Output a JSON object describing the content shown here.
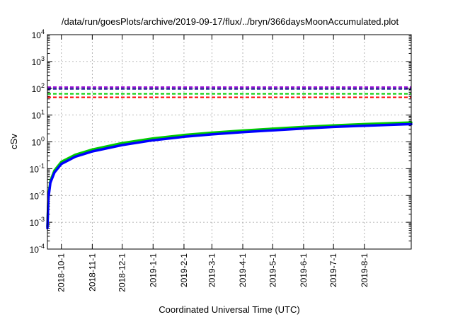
{
  "chart_data": {
    "type": "line",
    "title": "/data/run/goesPlots/archive/2019-09-17/flux/../bryn/366daysMoonAccumulated.plot",
    "xlabel": "Coordinated Universal Time (UTC)",
    "ylabel": "cSv",
    "y_scale": "log",
    "ylim_exp": [
      -4,
      4
    ],
    "ytick_exponents": [
      -4,
      -3,
      -2,
      -1,
      0,
      1,
      2,
      3,
      4
    ],
    "ytick_base": "10",
    "xlim": [
      "2018-09-17",
      "2019-09-17"
    ],
    "xticks": [
      {
        "date": "2018-10-01",
        "label": "2018-10-1"
      },
      {
        "date": "2018-11-01",
        "label": "2018-11-1"
      },
      {
        "date": "2018-12-01",
        "label": "2018-12-1"
      },
      {
        "date": "2019-01-01",
        "label": "2019-1-1"
      },
      {
        "date": "2019-02-01",
        "label": "2019-2-1"
      },
      {
        "date": "2019-03-01",
        "label": "2019-3-1"
      },
      {
        "date": "2019-04-01",
        "label": "2019-4-1"
      },
      {
        "date": "2019-05-01",
        "label": "2019-5-1"
      },
      {
        "date": "2019-06-01",
        "label": "2019-6-1"
      },
      {
        "date": "2019-07-01",
        "label": "2019-7-1"
      },
      {
        "date": "2019-08-01",
        "label": "2019-8-1"
      }
    ],
    "grid": true,
    "series": [
      {
        "color": "#00cc00",
        "values": [
          {
            "x": "2018-09-17",
            "y": 0.0007
          },
          {
            "x": "2018-09-18",
            "y": 0.009
          },
          {
            "x": "2018-09-20",
            "y": 0.035
          },
          {
            "x": "2018-09-24",
            "y": 0.085
          },
          {
            "x": "2018-10-01",
            "y": 0.18
          },
          {
            "x": "2018-10-15",
            "y": 0.33
          },
          {
            "x": "2018-11-01",
            "y": 0.52
          },
          {
            "x": "2018-12-01",
            "y": 0.9
          },
          {
            "x": "2019-01-01",
            "y": 1.35
          },
          {
            "x": "2019-02-01",
            "y": 1.8
          },
          {
            "x": "2019-03-01",
            "y": 2.2
          },
          {
            "x": "2019-04-01",
            "y": 2.65
          },
          {
            "x": "2019-05-01",
            "y": 3.1
          },
          {
            "x": "2019-06-01",
            "y": 3.6
          },
          {
            "x": "2019-07-01",
            "y": 4.1
          },
          {
            "x": "2019-08-01",
            "y": 4.6
          },
          {
            "x": "2019-09-17",
            "y": 5.3
          }
        ]
      },
      {
        "color": "#0000ff",
        "values": [
          {
            "x": "2018-09-17",
            "y": 0.0006
          },
          {
            "x": "2018-09-18",
            "y": 0.008
          },
          {
            "x": "2018-09-20",
            "y": 0.03
          },
          {
            "x": "2018-09-24",
            "y": 0.072
          },
          {
            "x": "2018-10-01",
            "y": 0.15
          },
          {
            "x": "2018-10-15",
            "y": 0.28
          },
          {
            "x": "2018-11-01",
            "y": 0.44
          },
          {
            "x": "2018-12-01",
            "y": 0.76
          },
          {
            "x": "2019-01-01",
            "y": 1.15
          },
          {
            "x": "2019-02-01",
            "y": 1.55
          },
          {
            "x": "2019-03-01",
            "y": 1.9
          },
          {
            "x": "2019-04-01",
            "y": 2.3
          },
          {
            "x": "2019-05-01",
            "y": 2.7
          },
          {
            "x": "2019-06-01",
            "y": 3.15
          },
          {
            "x": "2019-07-01",
            "y": 3.6
          },
          {
            "x": "2019-08-01",
            "y": 4.0
          },
          {
            "x": "2019-09-17",
            "y": 4.6
          }
        ]
      }
    ],
    "reference_lines": [
      {
        "y": 110,
        "color": "#9400d3",
        "style": "dashed"
      },
      {
        "y": 95,
        "color": "#000080",
        "style": "dashed"
      },
      {
        "y": 62,
        "color": "#00cc00",
        "style": "dashed"
      },
      {
        "y": 46,
        "color": "#ff0000",
        "style": "dashed"
      }
    ]
  }
}
